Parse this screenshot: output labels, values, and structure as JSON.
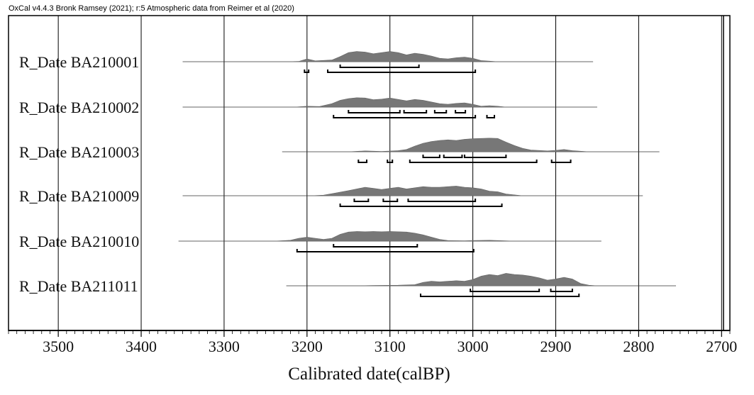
{
  "header": "OxCal v4.4.3 Bronk Ramsey (2021); r:5 Atmospheric data from Reimer et al (2020)",
  "chart_data": {
    "type": "area",
    "title": "",
    "xlabel": "Calibrated date(calBP)",
    "ylabel": "",
    "xlim": [
      3560,
      2690
    ],
    "xticks": [
      3500,
      3400,
      3300,
      3200,
      3100,
      3000,
      2900,
      2800,
      2700
    ],
    "grid": true,
    "samples": [
      {
        "name": "R_Date BA210001",
        "range": [
          3350,
          2855
        ],
        "density": [
          [
            3225,
            0
          ],
          [
            3210,
            1
          ],
          [
            3200,
            10
          ],
          [
            3190,
            3
          ],
          [
            3170,
            6
          ],
          [
            3160,
            18
          ],
          [
            3150,
            32
          ],
          [
            3140,
            36
          ],
          [
            3130,
            34
          ],
          [
            3120,
            28
          ],
          [
            3110,
            32
          ],
          [
            3100,
            36
          ],
          [
            3090,
            32
          ],
          [
            3080,
            24
          ],
          [
            3070,
            30
          ],
          [
            3060,
            26
          ],
          [
            3050,
            20
          ],
          [
            3040,
            12
          ],
          [
            3030,
            10
          ],
          [
            3020,
            14
          ],
          [
            3010,
            16
          ],
          [
            3000,
            12
          ],
          [
            2990,
            4
          ],
          [
            2980,
            2
          ],
          [
            2970,
            0
          ]
        ],
        "ranges_68": [
          [
            3160,
            3065
          ]
        ],
        "ranges_95": [
          [
            3203,
            3198
          ],
          [
            3175,
            2997
          ]
        ]
      },
      {
        "name": "R_Date BA210002",
        "range": [
          3350,
          2850
        ],
        "density": [
          [
            3215,
            0
          ],
          [
            3200,
            3
          ],
          [
            3185,
            2
          ],
          [
            3170,
            12
          ],
          [
            3160,
            24
          ],
          [
            3150,
            30
          ],
          [
            3140,
            33
          ],
          [
            3130,
            32
          ],
          [
            3120,
            26
          ],
          [
            3110,
            28
          ],
          [
            3100,
            32
          ],
          [
            3090,
            27
          ],
          [
            3080,
            22
          ],
          [
            3070,
            27
          ],
          [
            3060,
            24
          ],
          [
            3050,
            18
          ],
          [
            3040,
            12
          ],
          [
            3030,
            10
          ],
          [
            3020,
            13
          ],
          [
            3010,
            15
          ],
          [
            3000,
            10
          ],
          [
            2990,
            3
          ],
          [
            2980,
            5
          ],
          [
            2970,
            3
          ],
          [
            2960,
            0
          ]
        ],
        "ranges_68": [
          [
            3150,
            3088
          ],
          [
            3083,
            3056
          ],
          [
            3046,
            3032
          ],
          [
            3021,
            3009
          ]
        ],
        "ranges_95": [
          [
            3168,
            2997
          ],
          [
            2983,
            2974
          ]
        ]
      },
      {
        "name": "R_Date BA210003",
        "range": [
          3230,
          2775
        ],
        "density": [
          [
            3150,
            0
          ],
          [
            3130,
            3
          ],
          [
            3110,
            1
          ],
          [
            3090,
            4
          ],
          [
            3080,
            8
          ],
          [
            3070,
            20
          ],
          [
            3060,
            30
          ],
          [
            3050,
            36
          ],
          [
            3040,
            40
          ],
          [
            3030,
            42
          ],
          [
            3020,
            40
          ],
          [
            3010,
            44
          ],
          [
            3000,
            46
          ],
          [
            2990,
            47
          ],
          [
            2980,
            48
          ],
          [
            2970,
            47
          ],
          [
            2960,
            34
          ],
          [
            2950,
            22
          ],
          [
            2940,
            12
          ],
          [
            2930,
            6
          ],
          [
            2910,
            3
          ],
          [
            2900,
            5
          ],
          [
            2890,
            8
          ],
          [
            2880,
            4
          ],
          [
            2860,
            0
          ]
        ],
        "ranges_68": [
          [
            3060,
            3040
          ],
          [
            3035,
            3013
          ],
          [
            3010,
            2960
          ]
        ],
        "ranges_95": [
          [
            3138,
            3128
          ],
          [
            3103,
            3097
          ],
          [
            3076,
            2923
          ],
          [
            2905,
            2882
          ]
        ]
      },
      {
        "name": "R_Date BA210009",
        "range": [
          3350,
          2795
        ],
        "density": [
          [
            3195,
            0
          ],
          [
            3180,
            2
          ],
          [
            3165,
            10
          ],
          [
            3150,
            18
          ],
          [
            3140,
            24
          ],
          [
            3130,
            30
          ],
          [
            3120,
            26
          ],
          [
            3110,
            22
          ],
          [
            3100,
            26
          ],
          [
            3090,
            30
          ],
          [
            3080,
            24
          ],
          [
            3070,
            28
          ],
          [
            3060,
            32
          ],
          [
            3050,
            30
          ],
          [
            3040,
            30
          ],
          [
            3030,
            32
          ],
          [
            3020,
            34
          ],
          [
            3010,
            30
          ],
          [
            3000,
            28
          ],
          [
            2990,
            24
          ],
          [
            2980,
            16
          ],
          [
            2970,
            14
          ],
          [
            2960,
            6
          ],
          [
            2940,
            0
          ]
        ],
        "ranges_68": [
          [
            3143,
            3126
          ],
          [
            3108,
            3091
          ],
          [
            3078,
            2997
          ]
        ],
        "ranges_95": [
          [
            3160,
            2965
          ]
        ]
      },
      {
        "name": "R_Date BA210010",
        "range": [
          3355,
          2845
        ],
        "density": [
          [
            3240,
            0
          ],
          [
            3220,
            3
          ],
          [
            3210,
            10
          ],
          [
            3200,
            14
          ],
          [
            3190,
            10
          ],
          [
            3180,
            6
          ],
          [
            3170,
            10
          ],
          [
            3160,
            24
          ],
          [
            3150,
            32
          ],
          [
            3140,
            34
          ],
          [
            3130,
            33
          ],
          [
            3120,
            34
          ],
          [
            3110,
            33
          ],
          [
            3100,
            34
          ],
          [
            3090,
            33
          ],
          [
            3080,
            32
          ],
          [
            3070,
            28
          ],
          [
            3060,
            22
          ],
          [
            3050,
            14
          ],
          [
            3040,
            6
          ],
          [
            3030,
            2
          ],
          [
            3010,
            1
          ],
          [
            3000,
            2
          ],
          [
            2980,
            3
          ],
          [
            2970,
            2
          ],
          [
            2950,
            0
          ]
        ],
        "ranges_68": [
          [
            3168,
            3067
          ]
        ],
        "ranges_95": [
          [
            3212,
            2999
          ]
        ]
      },
      {
        "name": "R_Date BA211011",
        "range": [
          3225,
          2755
        ],
        "density": [
          [
            3140,
            0
          ],
          [
            3120,
            1
          ],
          [
            3090,
            2
          ],
          [
            3070,
            4
          ],
          [
            3060,
            12
          ],
          [
            3050,
            16
          ],
          [
            3040,
            14
          ],
          [
            3030,
            16
          ],
          [
            3020,
            18
          ],
          [
            3010,
            16
          ],
          [
            3000,
            22
          ],
          [
            2990,
            34
          ],
          [
            2980,
            40
          ],
          [
            2970,
            36
          ],
          [
            2960,
            44
          ],
          [
            2950,
            40
          ],
          [
            2940,
            38
          ],
          [
            2930,
            34
          ],
          [
            2920,
            28
          ],
          [
            2910,
            20
          ],
          [
            2900,
            24
          ],
          [
            2890,
            30
          ],
          [
            2880,
            24
          ],
          [
            2870,
            8
          ],
          [
            2860,
            2
          ],
          [
            2850,
            0
          ]
        ],
        "ranges_68": [
          [
            3003,
            2920
          ],
          [
            2906,
            2880
          ]
        ],
        "ranges_95": [
          [
            3063,
            2872
          ]
        ]
      }
    ]
  }
}
